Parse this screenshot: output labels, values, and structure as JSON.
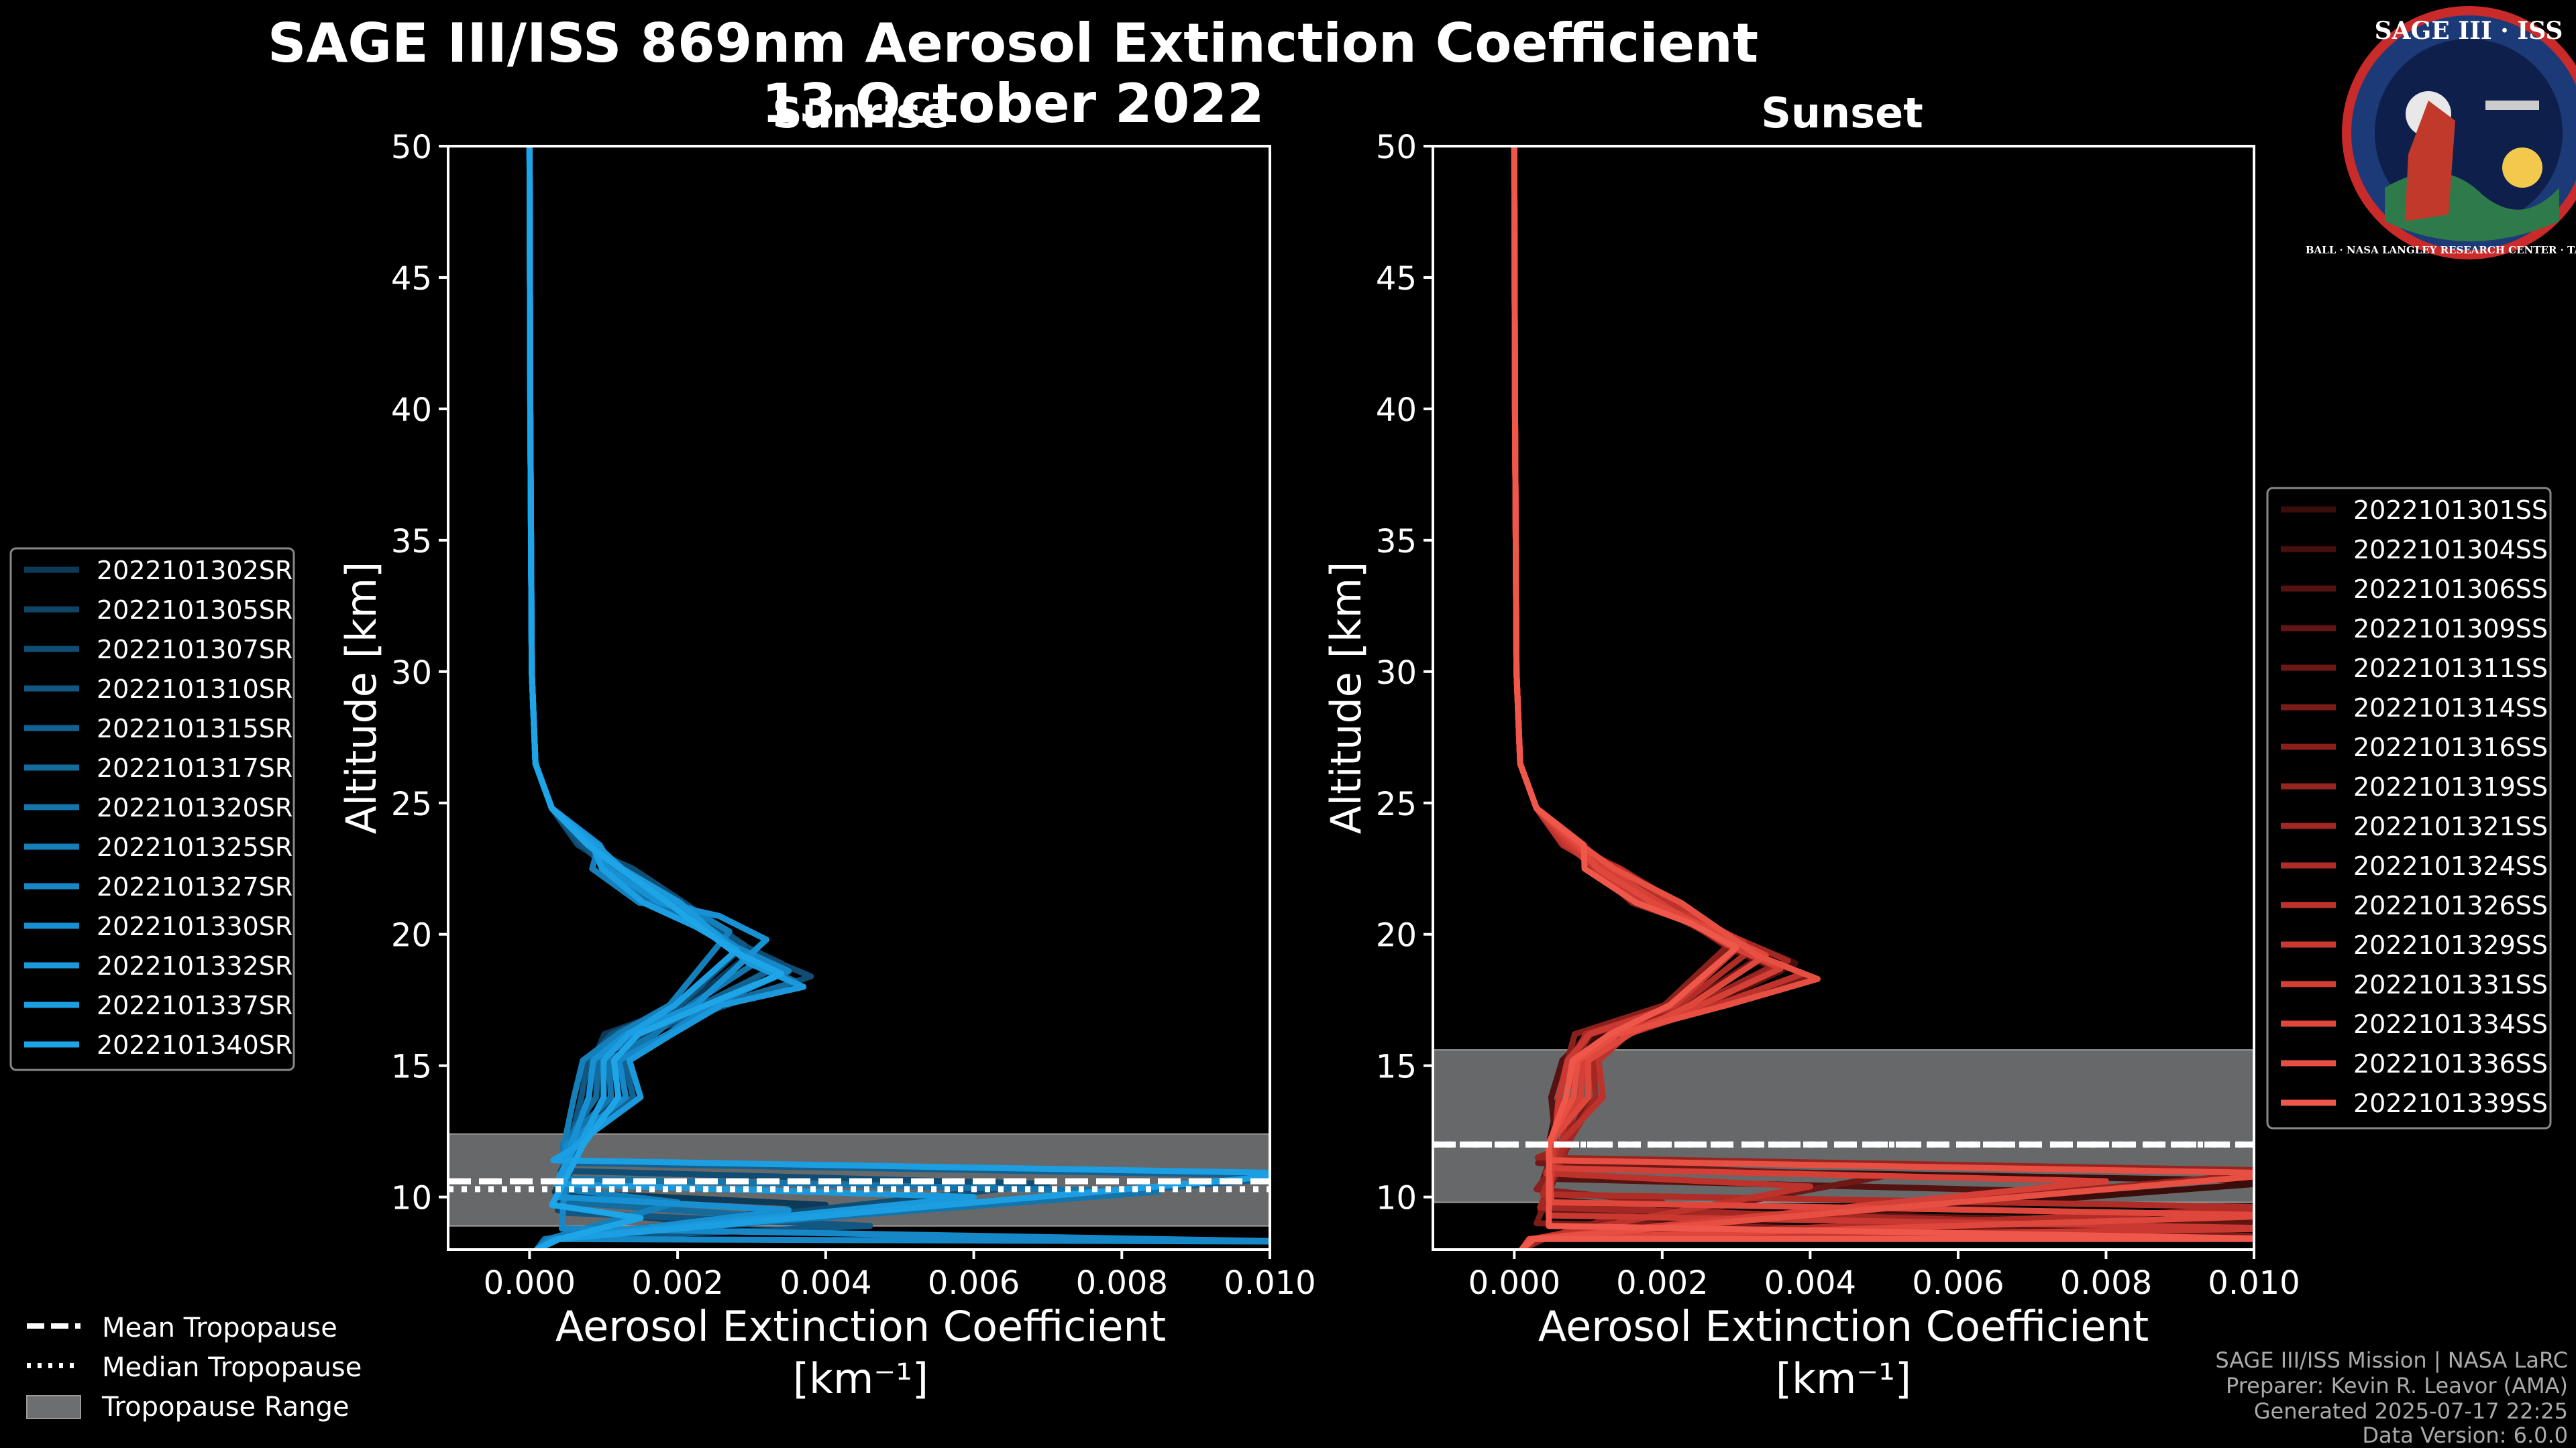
{
  "figure": {
    "title_line1": "SAGE III/ISS 869nm Aerosol Extinction Coefficient",
    "title_line2": "13 October 2022",
    "footer": [
      "SAGE III/ISS Mission | NASA LaRC",
      "Preparer: Kevin R. Leavor (AMA)",
      "Generated 2025-07-17 22:25",
      "Data Version: 6.0.0"
    ],
    "logo": {
      "text": "SAGE III · ISS",
      "ring_text": "BALL · NASA LANGLEY RESEARCH CENTER · TAS-I · ESA"
    },
    "legend_tropopause": {
      "mean": "Mean Tropopause",
      "median": "Median Tropopause",
      "range": "Tropopause Range"
    }
  },
  "chart_data": [
    {
      "type": "line",
      "panel": "sunrise",
      "title": "Sunrise",
      "xlabel": "Aerosol Extinction Coefficient",
      "xunit": "[km⁻¹]",
      "ylabel": "Altitude [km]",
      "xlim": [
        -0.0011,
        0.01
      ],
      "ylim": [
        8,
        50
      ],
      "xticks": [
        "0.000",
        "0.002",
        "0.004",
        "0.006",
        "0.008",
        "0.010"
      ],
      "xtick_values": [
        0,
        0.002,
        0.004,
        0.006,
        0.008,
        0.01
      ],
      "yticks": [
        10,
        15,
        20,
        25,
        30,
        35,
        40,
        45,
        50
      ],
      "tropopause": {
        "mean": 10.6,
        "median": 10.3,
        "range": [
          8.9,
          12.4
        ]
      },
      "legend_position": "left",
      "colors": [
        "#0c3a58",
        "#0e4466",
        "#104d74",
        "#115782",
        "#126190",
        "#136b9e",
        "#1475ac",
        "#157fba",
        "#1688c8",
        "#1791d3",
        "#1a99dc",
        "#1c9fe2",
        "#1ea5e8"
      ],
      "series": [
        {
          "name": "2022101302SR",
          "peak_x": 0.003,
          "peak_alt": 19.3,
          "low_x": 0.0008,
          "tail_x": 0.004,
          "tail_alt": 9.7
        },
        {
          "name": "2022101305SR",
          "peak_x": 0.0034,
          "peak_alt": 18.9,
          "low_x": 0.001,
          "tail_x": 0.0025,
          "tail_alt": 9.0
        },
        {
          "name": "2022101307SR",
          "peak_x": 0.0038,
          "peak_alt": 18.4,
          "low_x": 0.0012,
          "tail_x": 0.007,
          "tail_alt": 10.5
        },
        {
          "name": "2022101310SR",
          "peak_x": 0.0029,
          "peak_alt": 19.6,
          "low_x": 0.0007,
          "tail_x": 0.0046,
          "tail_alt": 8.9
        },
        {
          "name": "2022101315SR",
          "peak_x": 0.0033,
          "peak_alt": 18.7,
          "low_x": 0.0014,
          "tail_x": 0.0105,
          "tail_alt": 10.8
        },
        {
          "name": "2022101317SR",
          "peak_x": 0.0036,
          "peak_alt": 18.2,
          "low_x": 0.0009,
          "tail_x": 0.003,
          "tail_alt": 9.3
        },
        {
          "name": "2022101320SR",
          "peak_x": 0.0031,
          "peak_alt": 19.0,
          "low_x": 0.0011,
          "tail_x": 0.0085,
          "tail_alt": 10.2
        },
        {
          "name": "2022101325SR",
          "peak_x": 0.0027,
          "peak_alt": 20.1,
          "low_x": 0.0006,
          "tail_x": 0.002,
          "tail_alt": 9.8
        },
        {
          "name": "2022101327SR",
          "peak_x": 0.0035,
          "peak_alt": 18.6,
          "low_x": 0.0013,
          "tail_x": 0.0105,
          "tail_alt": 8.3
        },
        {
          "name": "2022101330SR",
          "peak_x": 0.0032,
          "peak_alt": 19.8,
          "low_x": 0.0008,
          "tail_x": 0.0035,
          "tail_alt": 9.5
        },
        {
          "name": "2022101332SR",
          "peak_x": 0.0037,
          "peak_alt": 18.0,
          "low_x": 0.0015,
          "tail_x": 0.006,
          "tail_alt": 10.0
        },
        {
          "name": "2022101337SR",
          "peak_x": 0.0028,
          "peak_alt": 19.4,
          "low_x": 0.001,
          "tail_x": 0.0105,
          "tail_alt": 10.9
        },
        {
          "name": "2022101340SR",
          "peak_x": 0.0034,
          "peak_alt": 18.5,
          "low_x": 0.0012,
          "tail_x": 0.0015,
          "tail_alt": 9.2
        }
      ]
    },
    {
      "type": "line",
      "panel": "sunset",
      "title": "Sunset",
      "xlabel": "Aerosol Extinction Coefficient",
      "xunit": "[km⁻¹]",
      "ylabel": "Altitude [km]",
      "xlim": [
        -0.0011,
        0.01
      ],
      "ylim": [
        8,
        50
      ],
      "xticks": [
        "0.000",
        "0.002",
        "0.004",
        "0.006",
        "0.008",
        "0.010"
      ],
      "xtick_values": [
        0,
        0.002,
        0.004,
        0.006,
        0.008,
        0.01
      ],
      "yticks": [
        10,
        15,
        20,
        25,
        30,
        35,
        40,
        45,
        50
      ],
      "tropopause": {
        "mean": 12.0,
        "median": 12.0,
        "range": [
          9.8,
          15.6
        ]
      },
      "legend_position": "right",
      "colors": [
        "#3a0c0a",
        "#470f0d",
        "#541210",
        "#611513",
        "#6e1816",
        "#7b1c19",
        "#89201c",
        "#96241f",
        "#a32823",
        "#b02d27",
        "#bd332c",
        "#c93931",
        "#d43f36",
        "#df473c",
        "#e84f43",
        "#ef574a"
      ],
      "series": [
        {
          "name": "2022101301SS",
          "peak_x": 0.0034,
          "peak_alt": 19.3,
          "low_x": 0.0006,
          "tail_x": 0.0105,
          "tail_alt": 10.6
        },
        {
          "name": "2022101304SS",
          "peak_x": 0.0038,
          "peak_alt": 18.9,
          "low_x": 0.0008,
          "tail_x": 0.003,
          "tail_alt": 9.4
        },
        {
          "name": "2022101306SS",
          "peak_x": 0.003,
          "peak_alt": 19.8,
          "low_x": 0.0005,
          "tail_x": 0.0075,
          "tail_alt": 10.2
        },
        {
          "name": "2022101309SS",
          "peak_x": 0.0036,
          "peak_alt": 18.6,
          "low_x": 0.0009,
          "tail_x": 0.0105,
          "tail_alt": 9.0
        },
        {
          "name": "2022101311SS",
          "peak_x": 0.0033,
          "peak_alt": 19.1,
          "low_x": 0.0007,
          "tail_x": 0.005,
          "tail_alt": 10.8
        },
        {
          "name": "2022101314SS",
          "peak_x": 0.004,
          "peak_alt": 18.4,
          "low_x": 0.001,
          "tail_x": 0.0105,
          "tail_alt": 8.5
        },
        {
          "name": "2022101316SS",
          "peak_x": 0.0029,
          "peak_alt": 19.6,
          "low_x": 0.0006,
          "tail_x": 0.002,
          "tail_alt": 9.8
        },
        {
          "name": "2022101319SS",
          "peak_x": 0.0035,
          "peak_alt": 18.8,
          "low_x": 0.0008,
          "tail_x": 0.0105,
          "tail_alt": 11.0
        },
        {
          "name": "2022101321SS",
          "peak_x": 0.0037,
          "peak_alt": 19.0,
          "low_x": 0.0011,
          "tail_x": 0.0065,
          "tail_alt": 9.1
        },
        {
          "name": "2022101324SS",
          "peak_x": 0.0032,
          "peak_alt": 19.4,
          "low_x": 0.0007,
          "tail_x": 0.0105,
          "tail_alt": 9.6
        },
        {
          "name": "2022101326SS",
          "peak_x": 0.0039,
          "peak_alt": 18.5,
          "low_x": 0.0012,
          "tail_x": 0.004,
          "tail_alt": 10.4
        },
        {
          "name": "2022101329SS",
          "peak_x": 0.0031,
          "peak_alt": 19.7,
          "low_x": 0.0006,
          "tail_x": 0.0105,
          "tail_alt": 8.8
        },
        {
          "name": "2022101331SS",
          "peak_x": 0.0036,
          "peak_alt": 18.7,
          "low_x": 0.0009,
          "tail_x": 0.008,
          "tail_alt": 10.6
        },
        {
          "name": "2022101334SS",
          "peak_x": 0.0034,
          "peak_alt": 19.2,
          "low_x": 0.001,
          "tail_x": 0.0105,
          "tail_alt": 9.3
        },
        {
          "name": "2022101336SS",
          "peak_x": 0.0041,
          "peak_alt": 18.3,
          "low_x": 0.0008,
          "tail_x": 0.0105,
          "tail_alt": 10.9
        },
        {
          "name": "2022101339SS",
          "peak_x": 0.003,
          "peak_alt": 19.5,
          "low_x": 0.0007,
          "tail_x": 0.0105,
          "tail_alt": 8.4
        }
      ]
    }
  ]
}
